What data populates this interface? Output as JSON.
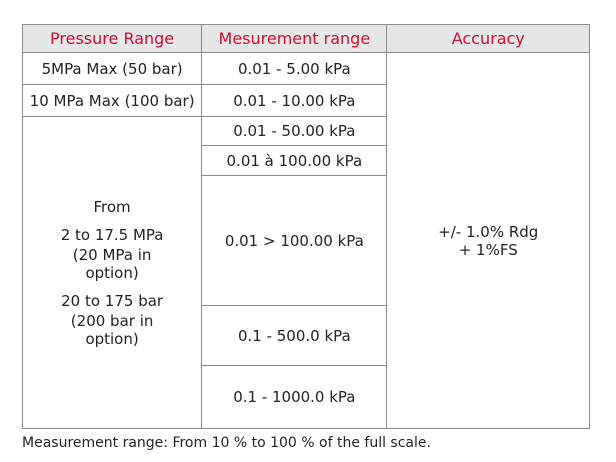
{
  "table": {
    "header": [
      "Pressure Range",
      "Mesurement range",
      "Accuracy"
    ],
    "pressure": [
      "5MPa Max (50 bar)",
      "10 MPa Max (100 bar)"
    ],
    "pressure_group": [
      "From",
      "2 to 17.5 MPa",
      "(20 MPa in option)",
      "20 to 175 bar",
      "(200 bar in option)"
    ],
    "ranges": [
      "0.01 - 5.00 kPa",
      "0.01 - 10.00 kPa",
      "0.01 - 50.00 kPa",
      "0.01 à 100.00 kPa",
      "0.01 > 100.00 kPa",
      "0.1 - 500.0 kPa",
      "0.1 - 1000.0 kPa"
    ],
    "accuracy": [
      "+/- 1.0% Rdg",
      "+ 1%FS"
    ]
  },
  "note": "Measurement range: From 10 % to 100 % of the full scale."
}
